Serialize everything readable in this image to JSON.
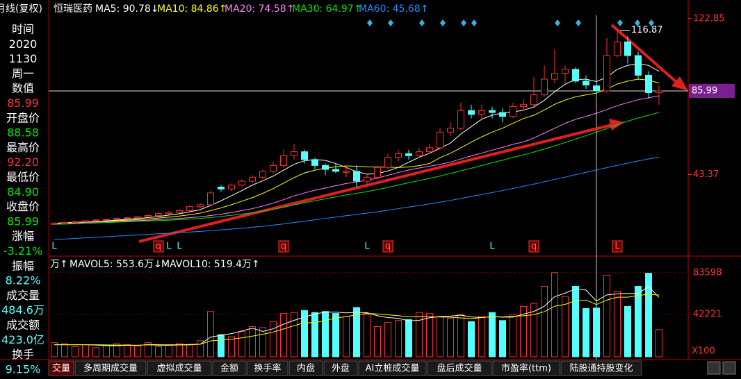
{
  "header": {
    "title": "月线(复权)",
    "stock": "恒瑞医药"
  },
  "info_panel": [
    {
      "text": "时间",
      "color": "#ffffff"
    },
    {
      "text": "2020",
      "color": "#ffffff"
    },
    {
      "text": "1130",
      "color": "#ffffff"
    },
    {
      "text": "周一",
      "color": "#ffffff"
    },
    {
      "text": "数值",
      "color": "#ffffff"
    },
    {
      "text": "85.99",
      "color": "#ff3232"
    },
    {
      "text": "开盘价",
      "color": "#ffffff"
    },
    {
      "text": "88.58",
      "color": "#00e600"
    },
    {
      "text": "最高价",
      "color": "#ffffff"
    },
    {
      "text": "92.20",
      "color": "#ff3232"
    },
    {
      "text": "最低价",
      "color": "#ffffff"
    },
    {
      "text": "84.90",
      "color": "#00e600"
    },
    {
      "text": "收盘价",
      "color": "#ffffff"
    },
    {
      "text": "85.99",
      "color": "#00e600"
    },
    {
      "text": "涨幅",
      "color": "#ffffff"
    },
    {
      "text": "-3.21%",
      "color": "#00e600"
    },
    {
      "text": "振幅",
      "color": "#ffffff"
    },
    {
      "text": "8.22%",
      "color": "#54ffff"
    },
    {
      "text": "成交量",
      "color": "#ffffff"
    },
    {
      "text": "484.6万",
      "color": "#54ffff"
    },
    {
      "text": "成交额",
      "color": "#ffffff"
    },
    {
      "text": "423.0亿",
      "color": "#54ffff"
    },
    {
      "text": "换手",
      "color": "#ffffff"
    },
    {
      "text": "9.15%",
      "color": "#54ffff"
    }
  ],
  "chart_data": [
    {
      "type": "candlestick",
      "up_color": "#ff3232",
      "down_color": "#54ffff",
      "open": [
        18.0,
        18.5,
        19.0,
        19.3,
        19.8,
        20.2,
        20.5,
        21.0,
        21.3,
        21.8,
        22.5,
        23.5,
        24.2,
        25.0,
        27.0,
        28.0,
        37.0,
        36.0,
        38.0,
        40.0,
        42.0,
        45.0,
        48.0,
        53.0,
        55.0,
        51.0,
        48.0,
        46.0,
        44.5,
        45.0,
        40.0,
        42.0,
        47.0,
        52.0,
        54.0,
        53.0,
        55.0,
        57.0,
        65.0,
        67.0,
        76.0,
        74.0,
        76.0,
        75.0,
        73.0,
        78.0,
        79.0,
        84.0,
        92.0,
        95.0,
        97.0,
        91.0,
        88.58,
        86.0,
        104.0,
        111.0,
        104.0,
        94.0,
        85.11
      ],
      "high": [
        19.0,
        19.5,
        19.8,
        20.2,
        20.6,
        20.9,
        21.5,
        21.8,
        22.3,
        23.0,
        24.0,
        24.8,
        25.6,
        27.6,
        28.8,
        35.0,
        38.0,
        38.8,
        41.0,
        43.0,
        46.0,
        50.0,
        56.0,
        59.0,
        56.0,
        52.0,
        49.0,
        49.0,
        48.0,
        48.0,
        44.0,
        48.0,
        54.0,
        56.0,
        56.0,
        57.0,
        59.0,
        67.0,
        70.0,
        80.0,
        79.0,
        79.0,
        78.0,
        77.0,
        80.0,
        82.0,
        93.0,
        99.0,
        107.0,
        99.0,
        98.0,
        94.0,
        92.2,
        113.0,
        116.87,
        114.0,
        106.0,
        96.0,
        89.0
      ],
      "low": [
        17.6,
        18.2,
        18.7,
        19.0,
        19.5,
        19.9,
        20.2,
        20.6,
        21.0,
        21.5,
        22.2,
        23.0,
        23.8,
        24.6,
        26.2,
        27.5,
        34.5,
        35.0,
        37.0,
        39.0,
        41.0,
        44.0,
        47.0,
        51.0,
        49.0,
        46.0,
        43.0,
        44.0,
        42.0,
        37.0,
        38.0,
        41.0,
        46.0,
        50.0,
        51.0,
        52.0,
        54.0,
        56.0,
        63.0,
        66.0,
        72.0,
        71.0,
        72.0,
        70.0,
        72.0,
        76.0,
        78.0,
        83.0,
        90.0,
        90.0,
        90.0,
        87.0,
        84.9,
        85.0,
        103.0,
        100.0,
        92.0,
        82.0,
        79.0
      ],
      "close": [
        18.5,
        19.0,
        19.3,
        19.8,
        20.2,
        20.5,
        21.0,
        21.3,
        21.8,
        22.5,
        23.5,
        24.2,
        25.0,
        27.0,
        28.0,
        34.0,
        36.0,
        38.0,
        40.0,
        42.0,
        45.0,
        48.0,
        53.0,
        55.0,
        51.0,
        48.0,
        46.0,
        45.0,
        45.0,
        40.0,
        42.0,
        47.0,
        52.0,
        54.0,
        53.0,
        55.0,
        57.0,
        65.0,
        67.0,
        76.0,
        74.0,
        76.0,
        75.0,
        73.0,
        78.0,
        79.0,
        84.0,
        92.0,
        95.0,
        97.0,
        91.0,
        89.0,
        85.99,
        104.0,
        111.0,
        104.0,
        94.0,
        85.11,
        86.0
      ],
      "series": [
        {
          "legend": "MA5: 90.78↓",
          "color": "#ffffff",
          "values": [
            18.5,
            18.8,
            19.0,
            19.2,
            19.4,
            19.8,
            20.2,
            20.6,
            21.0,
            21.4,
            22.0,
            22.7,
            23.4,
            24.4,
            25.5,
            27.6,
            30.0,
            32.6,
            35.2,
            38.0,
            40.2,
            42.6,
            45.6,
            48.6,
            50.4,
            51.0,
            50.6,
            49.0,
            47.0,
            44.8,
            43.6,
            43.8,
            45.2,
            47.0,
            49.6,
            52.2,
            54.2,
            56.8,
            59.4,
            64.0,
            67.8,
            71.6,
            73.6,
            74.8,
            75.2,
            76.2,
            77.8,
            81.2,
            85.6,
            89.4,
            91.8,
            92.0,
            90.78,
            93.0,
            97.0,
            99.0,
            100.0,
            99.0,
            96.0
          ]
        },
        {
          "legend": "MA10: 84.86↑",
          "color": "#ffff00",
          "values": [
            18.5,
            18.8,
            19.0,
            19.2,
            19.4,
            19.6,
            19.9,
            20.1,
            20.4,
            20.7,
            21.2,
            21.7,
            22.2,
            22.9,
            23.7,
            25.0,
            26.4,
            28.0,
            29.8,
            31.6,
            33.8,
            36.2,
            39.0,
            41.8,
            44.2,
            45.6,
            46.6,
            47.3,
            47.8,
            47.6,
            47.3,
            47.2,
            47.1,
            47.0,
            47.2,
            47.9,
            49.0,
            52.0,
            54.2,
            57.0,
            59.9,
            62.6,
            65.0,
            67.0,
            69.5,
            71.9,
            73.6,
            76.3,
            79.2,
            81.3,
            83.0,
            84.0,
            84.86,
            87.0,
            89.5,
            91.0,
            92.0,
            91.5,
            90.0
          ]
        },
        {
          "legend": "MA20: 74.58↑",
          "color": "#ff80ff",
          "values": [
            18.3,
            18.5,
            18.7,
            18.9,
            19.1,
            19.3,
            19.5,
            19.7,
            19.9,
            20.1,
            20.4,
            20.7,
            21.0,
            21.4,
            21.8,
            22.5,
            23.2,
            24.0,
            25.0,
            26.0,
            27.3,
            28.8,
            30.6,
            32.5,
            34.0,
            35.4,
            36.5,
            37.7,
            38.8,
            39.6,
            40.5,
            41.6,
            43.0,
            44.4,
            45.7,
            46.7,
            47.6,
            48.6,
            49.7,
            51.3,
            52.9,
            54.3,
            55.8,
            57.2,
            58.8,
            60.0,
            62.0,
            64.5,
            67.0,
            69.5,
            71.5,
            73.0,
            74.58,
            76.5,
            78.5,
            80.0,
            81.5,
            82.5,
            83.5
          ]
        },
        {
          "legend": "MA30: 64.97↑",
          "color": "#00e600",
          "values": [
            18.0,
            18.1,
            18.3,
            18.5,
            18.7,
            18.9,
            19.1,
            19.3,
            19.5,
            19.7,
            19.9,
            20.1,
            20.4,
            20.7,
            21.0,
            21.5,
            22.0,
            22.6,
            23.2,
            23.9,
            24.7,
            25.6,
            26.7,
            27.9,
            29.0,
            30.0,
            31.0,
            32.0,
            33.0,
            33.8,
            34.7,
            35.7,
            36.8,
            38.0,
            39.2,
            40.3,
            41.4,
            42.6,
            43.9,
            45.3,
            46.6,
            48.0,
            49.4,
            50.7,
            52.1,
            53.4,
            54.8,
            56.4,
            58.0,
            59.7,
            61.5,
            63.2,
            64.97,
            66.8,
            68.8,
            70.6,
            72.2,
            73.6,
            75.0
          ]
        },
        {
          "legend": "MA60: 45.68↑",
          "color": "#1e90ff",
          "values": [
            10.2,
            10.5,
            10.8,
            11.1,
            11.4,
            11.7,
            12.0,
            12.3,
            12.6,
            12.9,
            13.2,
            13.5,
            13.8,
            14.1,
            14.4,
            14.8,
            15.2,
            15.6,
            16.0,
            16.5,
            17.0,
            17.6,
            18.2,
            18.9,
            19.6,
            20.3,
            21.0,
            21.7,
            22.4,
            23.0,
            23.7,
            24.4,
            25.2,
            26.0,
            26.8,
            27.6,
            28.4,
            29.3,
            30.2,
            31.2,
            32.2,
            33.2,
            34.2,
            35.2,
            36.3,
            37.4,
            38.5,
            39.7,
            40.9,
            42.1,
            43.3,
            44.5,
            45.68,
            46.9,
            48.1,
            49.2,
            50.3,
            51.3,
            52.3
          ]
        }
      ],
      "ylim": [
        3.2,
        128.8
      ],
      "yticks": [
        122.85,
        43.37
      ],
      "event_labels": [
        "L",
        "q",
        "L",
        "L",
        "q",
        "L",
        "q",
        "L",
        "q",
        "L"
      ]
    },
    {
      "type": "bar",
      "up_color": "#ff3232",
      "down_color": "#54ffff",
      "values": [
        14000,
        13000,
        10000,
        12000,
        9000,
        11000,
        13000,
        12000,
        11000,
        14000,
        10000,
        12000,
        13000,
        12000,
        16000,
        45000,
        22000,
        20000,
        25000,
        30000,
        29000,
        35000,
        43000,
        44000,
        46000,
        44000,
        45000,
        43000,
        40000,
        49000,
        42000,
        30000,
        34000,
        36000,
        37000,
        44000,
        43000,
        40000,
        38000,
        42000,
        35000,
        40000,
        44000,
        36000,
        42000,
        50000,
        53000,
        70000,
        83598,
        60000,
        70000,
        48000,
        48460,
        81000,
        65000,
        50000,
        70000,
        83000,
        27000
      ],
      "series": [
        {
          "legend": "MAVOL5: 553.6万↓",
          "color": "#ffffff",
          "values": [
            12000,
            12000,
            12000,
            12000,
            11600,
            11000,
            11000,
            11400,
            11200,
            12200,
            12000,
            11800,
            12000,
            12200,
            12600,
            19600,
            21400,
            23000,
            25600,
            28400,
            25200,
            27800,
            32400,
            36200,
            39400,
            42400,
            44400,
            44400,
            43600,
            44200,
            43800,
            40800,
            39000,
            38200,
            35800,
            36200,
            38800,
            40000,
            40400,
            41400,
            39600,
            39000,
            39800,
            39400,
            39400,
            42400,
            45000,
            50200,
            59700,
            63300,
            67300,
            66300,
            55360,
            61500,
            62600,
            62900,
            62900,
            69800,
            59000
          ]
        },
        {
          "legend": "MAVOL10: 519.4万↑",
          "color": "#ffff00",
          "values": [
            12000,
            12000,
            12000,
            12000,
            12000,
            11800,
            11600,
            11600,
            11500,
            11900,
            11500,
            11400,
            11700,
            11800,
            12400,
            15800,
            16700,
            17500,
            18900,
            20500,
            22400,
            24600,
            27700,
            30900,
            33900,
            33800,
            36100,
            38400,
            39900,
            41800,
            43100,
            42600,
            41700,
            40900,
            39700,
            40000,
            39800,
            39500,
            39300,
            38600,
            37900,
            38900,
            39900,
            39700,
            40200,
            40800,
            41800,
            44800,
            50300,
            52100,
            55600,
            56400,
            51940,
            56400,
            59200,
            59200,
            60900,
            62200,
            61300
          ]
        }
      ],
      "volume_label": "万↑",
      "ylim": [
        0,
        93800
      ],
      "yticks": [
        83598,
        42221
      ],
      "y_unit": "X100"
    }
  ],
  "tabs": [
    "交量",
    "多周期成交量",
    "虚拟成交量",
    "金额",
    "换手率",
    "内盘",
    "外盘",
    "AI立桩成交量",
    "盘后成交量",
    "市盈率(ttm)",
    "陆股通持股变化"
  ]
}
